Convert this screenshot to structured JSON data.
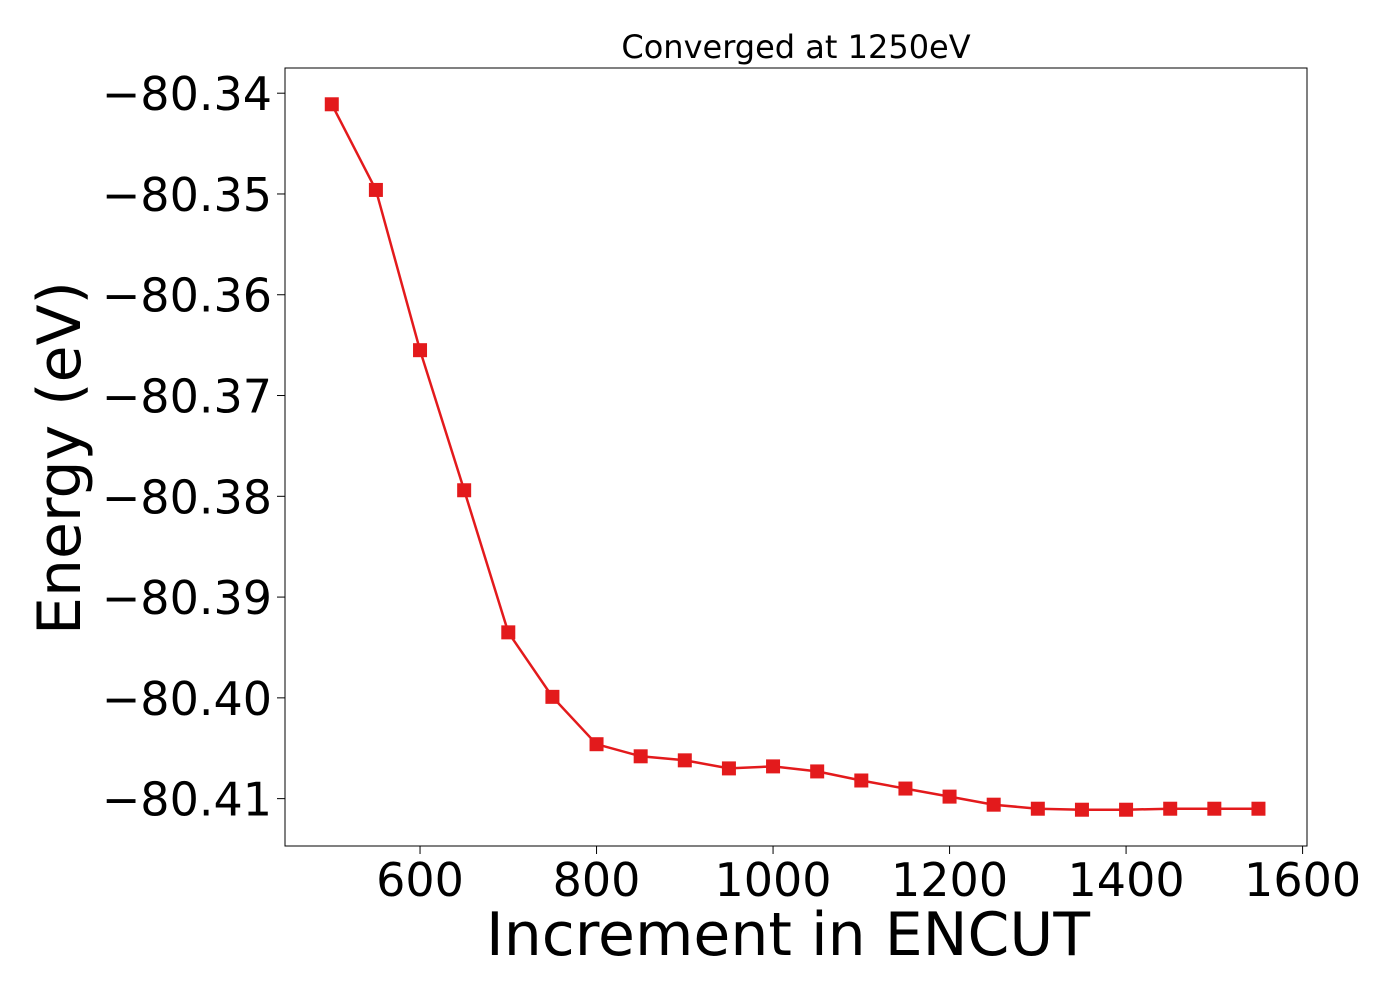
{
  "chart_data": {
    "type": "line",
    "title": "Converged at 1250eV",
    "xlabel": "Increment in ENCUT",
    "ylabel": "Energy (eV)",
    "xlim": [
      447,
      1605
    ],
    "ylim": [
      -80.4147,
      -80.3375
    ],
    "xticks": [
      600,
      800,
      1000,
      1200,
      1400,
      1600
    ],
    "yticks": [
      -80.34,
      -80.35,
      -80.36,
      -80.37,
      -80.38,
      -80.39,
      -80.4,
      -80.41
    ],
    "xtick_labels": [
      "600",
      "800",
      "1000",
      "1200",
      "1400",
      "1600"
    ],
    "ytick_labels": [
      "−80.34",
      "−80.35",
      "−80.36",
      "−80.37",
      "−80.38",
      "−80.39",
      "−80.40",
      "−80.41"
    ],
    "grid": false,
    "marker": "square",
    "color": "#e31a1c",
    "series": [
      {
        "x": [
          500,
          550,
          600,
          650,
          700,
          750,
          800,
          850,
          900,
          950,
          1000,
          1050,
          1100,
          1150,
          1200,
          1250,
          1300,
          1350,
          1400,
          1450,
          1500,
          1550
        ],
        "y": [
          -80.3411,
          -80.3496,
          -80.3655,
          -80.3794,
          -80.3935,
          -80.3999,
          -80.4046,
          -80.4058,
          -80.4062,
          -80.407,
          -80.4068,
          -80.4073,
          -80.4082,
          -80.409,
          -80.4098,
          -80.4106,
          -80.411,
          -80.4111,
          -80.4111,
          -80.411,
          -80.411,
          -80.411
        ]
      }
    ]
  }
}
